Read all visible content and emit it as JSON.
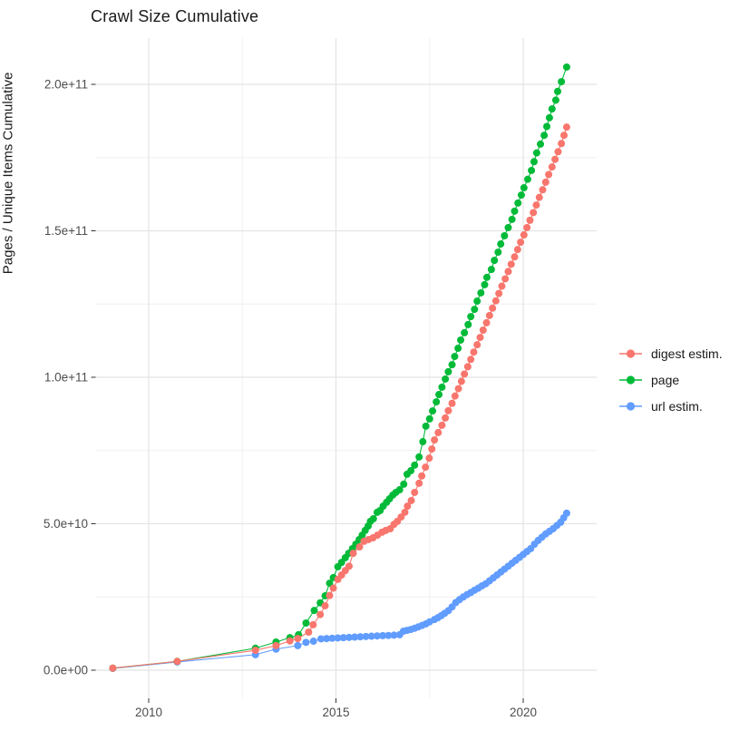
{
  "title": "Crawl Size Cumulative",
  "axes": {
    "x": {
      "label": "",
      "ticks": [
        {
          "label": "2010",
          "year": 2010
        },
        {
          "label": "2015",
          "year": 2015
        },
        {
          "label": "2020",
          "year": 2020
        }
      ],
      "minor_years": [
        2012.5,
        2017.5
      ]
    },
    "y": {
      "label": "Pages / Unique Items Cumulative",
      "ticks": [
        {
          "label": "0.0e+00",
          "value_e9": 0
        },
        {
          "label": "5.0e+10",
          "value_e9": 50
        },
        {
          "label": "1.0e+11",
          "value_e9": 100
        },
        {
          "label": "1.5e+11",
          "value_e9": 150
        },
        {
          "label": "2.0e+11",
          "value_e9": 200
        }
      ],
      "minor_values_e9": [
        25,
        75,
        125,
        175
      ]
    }
  },
  "legend": {
    "items": [
      {
        "label": "digest estim.",
        "color": "#F8766D",
        "series": "digest estim."
      },
      {
        "label": "page",
        "color": "#00BA38",
        "series": "page"
      },
      {
        "label": "url estim.",
        "color": "#619CFF",
        "series": "url estim."
      }
    ]
  },
  "chart_data": {
    "type": "line",
    "title": "Crawl Size Cumulative",
    "xlabel": "",
    "ylabel": "Pages / Unique Items Cumulative",
    "x_unit": "year (decimal)",
    "y_unit": "items, billions (1e9)",
    "xlim": [
      2008.58,
      2021.96
    ],
    "ylim_e9": [
      -9.6,
      216.4
    ],
    "grid": true,
    "legend_position": "right",
    "marker": "point",
    "draw_order": [
      "url estim.",
      "page",
      "digest estim."
    ],
    "series": [
      {
        "name": "digest estim.",
        "color": "#F8766D",
        "points": [
          [
            2009.04,
            0.7
          ],
          [
            2010.76,
            3.0
          ],
          [
            2012.85,
            6.8
          ],
          [
            2013.4,
            8.4
          ],
          [
            2013.77,
            10.0
          ],
          [
            2013.98,
            10.8
          ],
          [
            2014.27,
            13.0
          ],
          [
            2014.39,
            15.5
          ],
          [
            2014.58,
            19.0
          ],
          [
            2014.71,
            22.0
          ],
          [
            2014.83,
            25.5
          ],
          [
            2014.93,
            28.0
          ],
          [
            2015.05,
            31.0
          ],
          [
            2015.15,
            32.5
          ],
          [
            2015.25,
            34.0
          ],
          [
            2015.35,
            35.5
          ],
          [
            2015.46,
            39.9
          ],
          [
            2015.63,
            42.1
          ],
          [
            2015.75,
            44.0
          ],
          [
            2015.87,
            44.6
          ],
          [
            2015.99,
            45.2
          ],
          [
            2016.11,
            46.1
          ],
          [
            2016.23,
            47.1
          ],
          [
            2016.33,
            47.7
          ],
          [
            2016.45,
            48.3
          ],
          [
            2016.55,
            49.8
          ],
          [
            2016.64,
            50.8
          ],
          [
            2016.74,
            52.3
          ],
          [
            2016.84,
            53.9
          ],
          [
            2016.91,
            56.0
          ],
          [
            2017.01,
            57.9
          ],
          [
            2017.1,
            60.7
          ],
          [
            2017.22,
            63.8
          ],
          [
            2017.29,
            66.3
          ],
          [
            2017.39,
            69.3
          ],
          [
            2017.49,
            72.4
          ],
          [
            2017.56,
            75.5
          ],
          [
            2017.63,
            78.6
          ],
          [
            2017.73,
            81.1
          ],
          [
            2017.83,
            83.6
          ],
          [
            2017.92,
            86.1
          ],
          [
            2018.0,
            88.6
          ],
          [
            2018.1,
            91.1
          ],
          [
            2018.18,
            93.6
          ],
          [
            2018.27,
            96.1
          ],
          [
            2018.35,
            98.6
          ],
          [
            2018.43,
            101.1
          ],
          [
            2018.52,
            103.6
          ],
          [
            2018.6,
            106.1
          ],
          [
            2018.68,
            108.6
          ],
          [
            2018.77,
            111.1
          ],
          [
            2018.85,
            113.6
          ],
          [
            2018.93,
            116.1
          ],
          [
            2019.02,
            118.6
          ],
          [
            2019.1,
            121.1
          ],
          [
            2019.18,
            123.6
          ],
          [
            2019.27,
            126.1
          ],
          [
            2019.35,
            128.6
          ],
          [
            2019.43,
            131.1
          ],
          [
            2019.52,
            133.6
          ],
          [
            2019.6,
            136.1
          ],
          [
            2019.68,
            138.6
          ],
          [
            2019.77,
            141.1
          ],
          [
            2019.85,
            143.6
          ],
          [
            2019.93,
            146.1
          ],
          [
            2020.02,
            148.6
          ],
          [
            2020.1,
            151.1
          ],
          [
            2020.18,
            153.6
          ],
          [
            2020.27,
            156.2
          ],
          [
            2020.35,
            158.8
          ],
          [
            2020.43,
            161.4
          ],
          [
            2020.52,
            164.0
          ],
          [
            2020.6,
            166.6
          ],
          [
            2020.68,
            169.2
          ],
          [
            2020.77,
            171.8
          ],
          [
            2020.85,
            174.4
          ],
          [
            2020.93,
            177.0
          ],
          [
            2021.02,
            179.8
          ],
          [
            2021.09,
            182.6
          ],
          [
            2021.16,
            185.4
          ]
        ]
      },
      {
        "name": "page",
        "color": "#00BA38",
        "points": [
          [
            2009.04,
            0.7
          ],
          [
            2010.76,
            3.0
          ],
          [
            2012.85,
            7.5
          ],
          [
            2013.4,
            9.6
          ],
          [
            2013.77,
            11.1
          ],
          [
            2014.0,
            12.1
          ],
          [
            2014.2,
            16.1
          ],
          [
            2014.42,
            20.4
          ],
          [
            2014.58,
            23.0
          ],
          [
            2014.71,
            25.4
          ],
          [
            2014.83,
            29.7
          ],
          [
            2014.93,
            31.6
          ],
          [
            2015.05,
            35.3
          ],
          [
            2015.15,
            36.8
          ],
          [
            2015.25,
            38.4
          ],
          [
            2015.34,
            39.9
          ],
          [
            2015.44,
            41.5
          ],
          [
            2015.53,
            43.0
          ],
          [
            2015.62,
            44.6
          ],
          [
            2015.7,
            46.1
          ],
          [
            2015.78,
            47.7
          ],
          [
            2015.86,
            49.2
          ],
          [
            2015.92,
            50.8
          ],
          [
            2016.0,
            51.7
          ],
          [
            2016.1,
            53.9
          ],
          [
            2016.18,
            54.5
          ],
          [
            2016.26,
            56.0
          ],
          [
            2016.35,
            57.3
          ],
          [
            2016.43,
            58.5
          ],
          [
            2016.52,
            59.8
          ],
          [
            2016.6,
            60.7
          ],
          [
            2016.7,
            61.6
          ],
          [
            2016.81,
            63.5
          ],
          [
            2016.9,
            66.9
          ],
          [
            2017.0,
            68.1
          ],
          [
            2017.1,
            70.0
          ],
          [
            2017.22,
            72.8
          ],
          [
            2017.32,
            78.0
          ],
          [
            2017.4,
            83.3
          ],
          [
            2017.5,
            85.8
          ],
          [
            2017.58,
            88.5
          ],
          [
            2017.68,
            91.6
          ],
          [
            2017.75,
            94.1
          ],
          [
            2017.83,
            96.6
          ],
          [
            2017.92,
            99.4
          ],
          [
            2018.0,
            101.9
          ],
          [
            2018.1,
            104.3
          ],
          [
            2018.17,
            107.1
          ],
          [
            2018.26,
            109.9
          ],
          [
            2018.33,
            112.7
          ],
          [
            2018.43,
            115.2
          ],
          [
            2018.53,
            118.0
          ],
          [
            2018.6,
            120.7
          ],
          [
            2018.7,
            123.2
          ],
          [
            2018.77,
            126.0
          ],
          [
            2018.87,
            128.8
          ],
          [
            2018.97,
            131.6
          ],
          [
            2019.03,
            134.1
          ],
          [
            2019.15,
            136.8
          ],
          [
            2019.23,
            139.9
          ],
          [
            2019.33,
            142.7
          ],
          [
            2019.4,
            145.5
          ],
          [
            2019.5,
            148.3
          ],
          [
            2019.6,
            151.1
          ],
          [
            2019.7,
            153.9
          ],
          [
            2019.77,
            156.7
          ],
          [
            2019.86,
            159.5
          ],
          [
            2019.95,
            162.2
          ],
          [
            2020.02,
            164.7
          ],
          [
            2020.12,
            167.6
          ],
          [
            2020.22,
            170.6
          ],
          [
            2020.29,
            173.6
          ],
          [
            2020.36,
            176.6
          ],
          [
            2020.46,
            179.6
          ],
          [
            2020.56,
            182.6
          ],
          [
            2020.63,
            185.6
          ],
          [
            2020.7,
            188.6
          ],
          [
            2020.77,
            191.6
          ],
          [
            2020.87,
            194.6
          ],
          [
            2020.92,
            197.6
          ],
          [
            2021.02,
            200.9
          ],
          [
            2021.16,
            205.9
          ]
        ]
      },
      {
        "name": "url estim.",
        "color": "#619CFF",
        "points": [
          [
            2009.04,
            0.6
          ],
          [
            2010.76,
            2.8
          ],
          [
            2012.85,
            5.3
          ],
          [
            2013.4,
            7.2
          ],
          [
            2013.98,
            8.4
          ],
          [
            2014.2,
            9.5
          ],
          [
            2014.4,
            9.9
          ],
          [
            2014.6,
            10.7
          ],
          [
            2014.75,
            10.8
          ],
          [
            2014.9,
            10.9
          ],
          [
            2015.05,
            11.0
          ],
          [
            2015.2,
            11.1
          ],
          [
            2015.35,
            11.2
          ],
          [
            2015.5,
            11.3
          ],
          [
            2015.65,
            11.4
          ],
          [
            2015.8,
            11.5
          ],
          [
            2015.95,
            11.6
          ],
          [
            2016.1,
            11.7
          ],
          [
            2016.25,
            11.8
          ],
          [
            2016.4,
            11.85
          ],
          [
            2016.55,
            11.95
          ],
          [
            2016.7,
            12.1
          ],
          [
            2016.8,
            13.3
          ],
          [
            2016.9,
            13.6
          ],
          [
            2017.0,
            13.9
          ],
          [
            2017.1,
            14.3
          ],
          [
            2017.2,
            14.8
          ],
          [
            2017.3,
            15.3
          ],
          [
            2017.4,
            15.8
          ],
          [
            2017.5,
            16.5
          ],
          [
            2017.63,
            17.3
          ],
          [
            2017.72,
            17.9
          ],
          [
            2017.81,
            18.6
          ],
          [
            2017.9,
            19.4
          ],
          [
            2018.0,
            20.3
          ],
          [
            2018.1,
            21.6
          ],
          [
            2018.2,
            23.1
          ],
          [
            2018.3,
            24.1
          ],
          [
            2018.4,
            25.0
          ],
          [
            2018.5,
            25.8
          ],
          [
            2018.6,
            26.5
          ],
          [
            2018.7,
            27.3
          ],
          [
            2018.8,
            28.0
          ],
          [
            2018.9,
            28.8
          ],
          [
            2019.0,
            29.5
          ],
          [
            2019.1,
            30.5
          ],
          [
            2019.2,
            31.5
          ],
          [
            2019.3,
            32.5
          ],
          [
            2019.4,
            33.5
          ],
          [
            2019.5,
            34.5
          ],
          [
            2019.6,
            35.5
          ],
          [
            2019.7,
            36.5
          ],
          [
            2019.8,
            37.5
          ],
          [
            2019.9,
            38.5
          ],
          [
            2020.0,
            39.5
          ],
          [
            2020.1,
            40.5
          ],
          [
            2020.2,
            41.5
          ],
          [
            2020.3,
            43.0
          ],
          [
            2020.4,
            44.3
          ],
          [
            2020.5,
            45.4
          ],
          [
            2020.6,
            46.5
          ],
          [
            2020.7,
            47.4
          ],
          [
            2020.8,
            48.3
          ],
          [
            2020.9,
            49.4
          ],
          [
            2021.0,
            50.5
          ],
          [
            2021.08,
            52.0
          ],
          [
            2021.16,
            53.6
          ]
        ]
      }
    ]
  },
  "style_colors": {
    "grid_major": "#e4e4e4",
    "grid_minor": "#f0f0f0",
    "tick_label": "#4d4d4d",
    "axis_tick": "#333333",
    "text": "#1a1a1a",
    "background": "#ffffff"
  }
}
